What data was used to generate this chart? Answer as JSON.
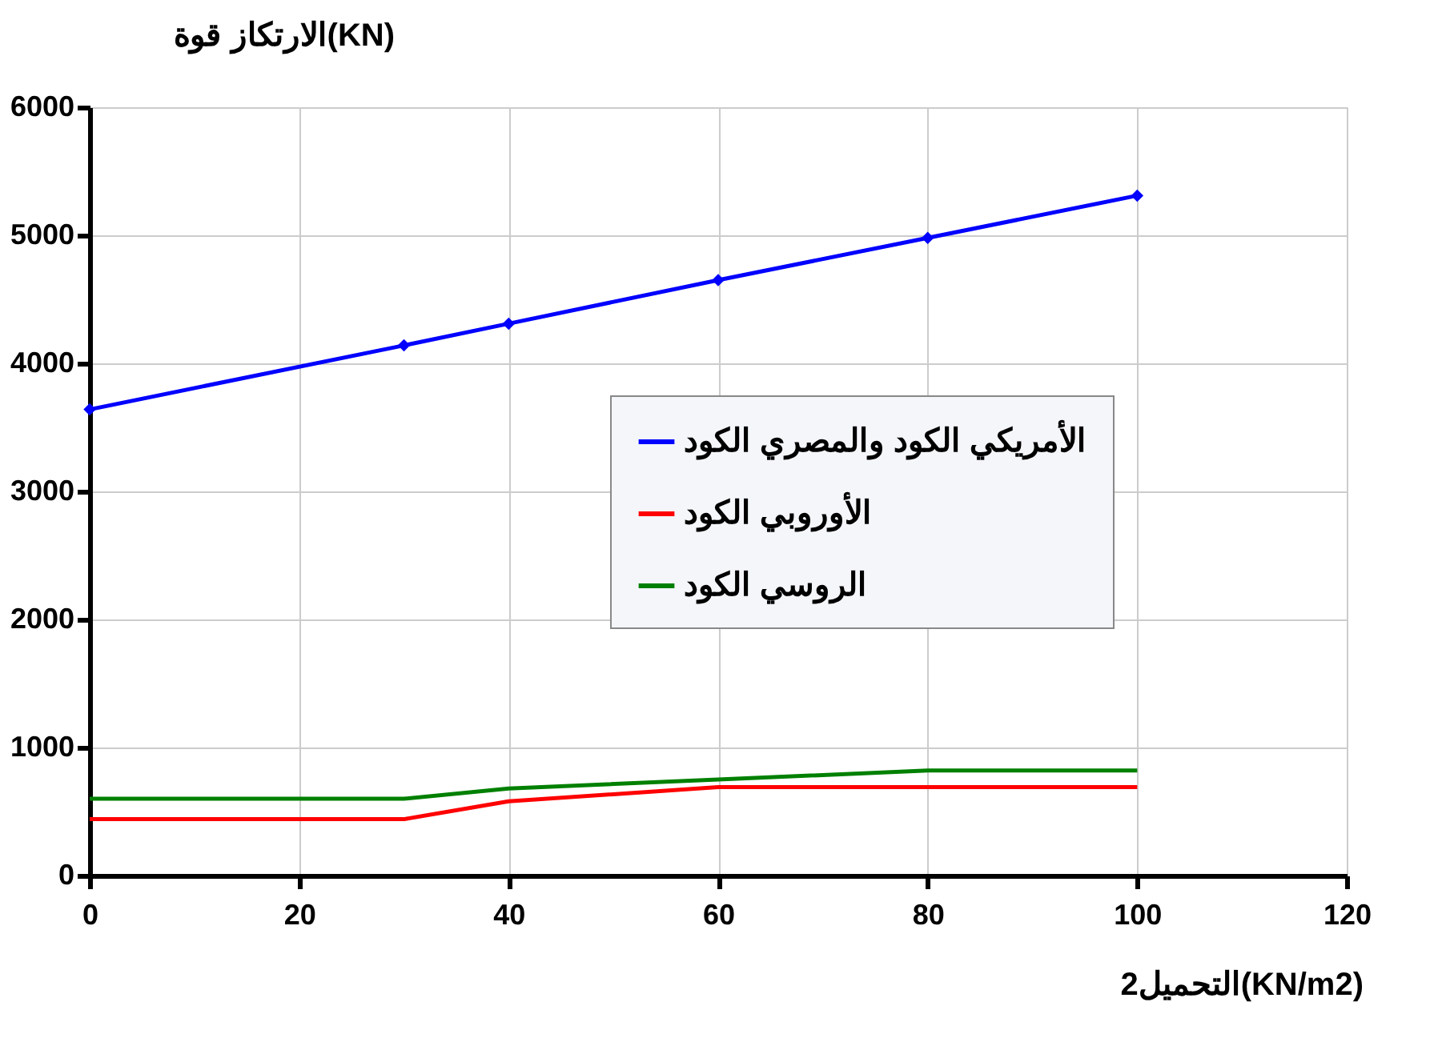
{
  "chart_data": {
    "type": "line",
    "xlabel": "التحميل2(KN/m2)",
    "ylabel": "الارتكاز قوة(KN)",
    "x": [
      0,
      30,
      40,
      60,
      80,
      100
    ],
    "series": [
      {
        "name": "الأمريكي الكود والمصري الكود",
        "color": "#0000ff",
        "marker": "diamond",
        "values": [
          3640,
          4140,
          4310,
          4650,
          4980,
          5310
        ]
      },
      {
        "name": "الأوروبي الكود",
        "color": "#ff0000",
        "marker": "none",
        "values": [
          440,
          440,
          580,
          690,
          690,
          690
        ]
      },
      {
        "name": "الروسي الكود",
        "color": "#008000",
        "marker": "none",
        "values": [
          600,
          600,
          680,
          750,
          820,
          820
        ]
      }
    ],
    "xlim": [
      0,
      120
    ],
    "xticks": [
      0,
      20,
      40,
      60,
      80,
      100,
      120
    ],
    "ylim": [
      0,
      6000
    ],
    "yticks": [
      0,
      1000,
      2000,
      3000,
      4000,
      5000,
      6000
    ],
    "grid": true,
    "legend": "right",
    "line_style": "solid"
  }
}
